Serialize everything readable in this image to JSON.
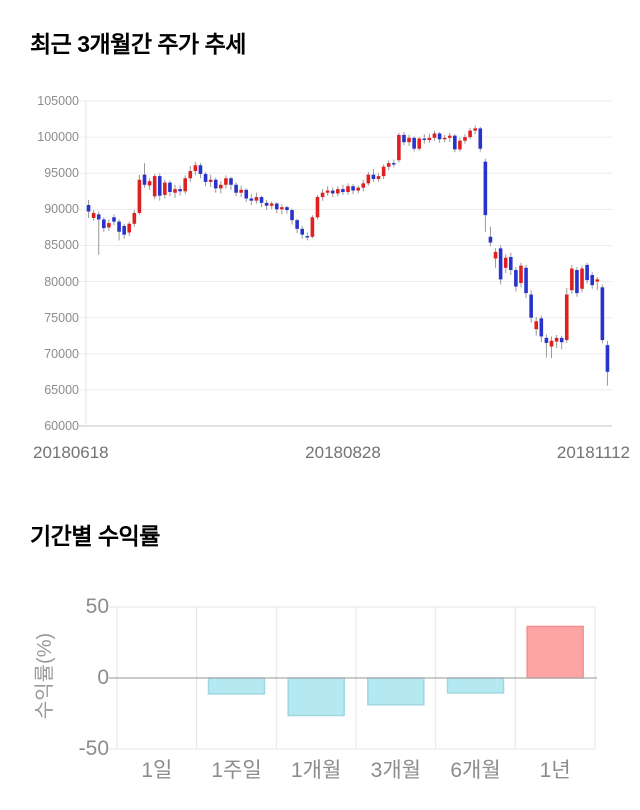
{
  "chart_data": [
    {
      "type": "candlestick",
      "title": "최근 3개월간 주가 추세",
      "xlabel": "",
      "ylabel": "",
      "ylim": [
        60000,
        105000
      ],
      "y_tick_labels": [
        105000,
        100000,
        95000,
        90000,
        85000,
        80000,
        75000,
        70000,
        65000,
        60000
      ],
      "x_tick_labels": [
        "20180618",
        "20180828",
        "20181112"
      ],
      "grid": true,
      "colors": {
        "up": "#e01f1f",
        "down": "#2733cc",
        "wick": "#999999",
        "grid": "#ededed",
        "axis_line": "#c6c6c6",
        "plot_edge": "#e5e5e5",
        "tick_text": "#8c8c8c",
        "date_text": "#737373"
      },
      "ohlc": [
        [
          90600,
          91300,
          88800,
          89700
        ],
        [
          88800,
          89900,
          88400,
          89500
        ],
        [
          89300,
          89700,
          83700,
          88600
        ],
        [
          88600,
          88900,
          86900,
          87400
        ],
        [
          87500,
          88600,
          87000,
          88100
        ],
        [
          88900,
          89300,
          87800,
          88300
        ],
        [
          88300,
          88600,
          85700,
          86900
        ],
        [
          87700,
          88000,
          85900,
          86500
        ],
        [
          86800,
          88300,
          86300,
          88000
        ],
        [
          88000,
          89900,
          87600,
          89500
        ],
        [
          89500,
          94800,
          89200,
          94100
        ],
        [
          94800,
          96400,
          93000,
          93400
        ],
        [
          93300,
          94300,
          92700,
          93900
        ],
        [
          91800,
          94900,
          91400,
          94600
        ],
        [
          94600,
          95000,
          91200,
          91900
        ],
        [
          92000,
          94100,
          91500,
          93700
        ],
        [
          93700,
          94000,
          91800,
          92400
        ],
        [
          92300,
          93400,
          91600,
          92800
        ],
        [
          92800,
          93300,
          91900,
          92500
        ],
        [
          92500,
          94700,
          92100,
          94300
        ],
        [
          94300,
          96000,
          93800,
          95300
        ],
        [
          95300,
          96600,
          94700,
          96100
        ],
        [
          96100,
          96400,
          94300,
          94900
        ],
        [
          94900,
          95200,
          93200,
          93800
        ],
        [
          93800,
          94800,
          93100,
          94100
        ],
        [
          94100,
          94400,
          92300,
          92900
        ],
        [
          92900,
          93900,
          92200,
          93400
        ],
        [
          93400,
          94700,
          92900,
          94300
        ],
        [
          94300,
          94500,
          92700,
          93400
        ],
        [
          93400,
          93700,
          91800,
          92300
        ],
        [
          92300,
          93300,
          91700,
          92700
        ],
        [
          92700,
          92900,
          91000,
          91500
        ],
        [
          91500,
          92100,
          90600,
          91200
        ],
        [
          91200,
          92300,
          90800,
          91700
        ],
        [
          91700,
          91900,
          90300,
          90900
        ],
        [
          90900,
          91300,
          89900,
          90500
        ],
        [
          90500,
          91100,
          90000,
          90800
        ],
        [
          90800,
          91000,
          89500,
          90000
        ],
        [
          90000,
          90700,
          89300,
          90300
        ],
        [
          90300,
          90500,
          89400,
          89900
        ],
        [
          89900,
          90100,
          87900,
          88500
        ],
        [
          88500,
          88700,
          86700,
          87300
        ],
        [
          87300,
          87700,
          85900,
          86500
        ],
        [
          86300,
          86800,
          85700,
          86200
        ],
        [
          86200,
          89200,
          86000,
          88900
        ],
        [
          88900,
          92000,
          88600,
          91700
        ],
        [
          91700,
          92800,
          91200,
          92300
        ],
        [
          92300,
          93200,
          91900,
          92600
        ],
        [
          92600,
          93000,
          91700,
          92200
        ],
        [
          92200,
          93200,
          91800,
          92800
        ],
        [
          92800,
          93400,
          92000,
          92400
        ],
        [
          92400,
          93600,
          92000,
          93200
        ],
        [
          93200,
          93500,
          92100,
          92600
        ],
        [
          92600,
          93300,
          92200,
          93000
        ],
        [
          93000,
          94100,
          92500,
          93600
        ],
        [
          93600,
          95200,
          93300,
          94800
        ],
        [
          94800,
          95600,
          93800,
          94200
        ],
        [
          94200,
          95000,
          93800,
          94600
        ],
        [
          94600,
          96200,
          94200,
          95900
        ],
        [
          95900,
          96800,
          95400,
          96400
        ],
        [
          96400,
          96900,
          95800,
          96300
        ],
        [
          96800,
          100600,
          96500,
          100300
        ],
        [
          100300,
          100700,
          98900,
          99300
        ],
        [
          99300,
          100300,
          98800,
          99900
        ],
        [
          99900,
          100100,
          98000,
          98400
        ],
        [
          98400,
          100000,
          98100,
          99800
        ],
        [
          99800,
          100400,
          99100,
          99600
        ],
        [
          99600,
          100500,
          99200,
          99900
        ],
        [
          99900,
          100900,
          99500,
          100500
        ],
        [
          100500,
          100700,
          99200,
          99700
        ],
        [
          99700,
          100300,
          99300,
          99900
        ],
        [
          99900,
          100600,
          99300,
          100200
        ],
        [
          100200,
          100400,
          97900,
          98300
        ],
        [
          98300,
          99900,
          98000,
          99500
        ],
        [
          99500,
          100400,
          99100,
          100000
        ],
        [
          100000,
          101300,
          99700,
          100900
        ],
        [
          100900,
          101600,
          100400,
          101200
        ],
        [
          101200,
          101400,
          98000,
          98400
        ],
        [
          96600,
          97000,
          86900,
          89200
        ],
        [
          86200,
          87600,
          84900,
          85400
        ],
        [
          83200,
          84600,
          81900,
          84100
        ],
        [
          84600,
          85000,
          79600,
          80300
        ],
        [
          81900,
          83800,
          81200,
          83300
        ],
        [
          83400,
          84000,
          80900,
          81600
        ],
        [
          81600,
          82000,
          78600,
          79300
        ],
        [
          79800,
          82600,
          79200,
          82200
        ],
        [
          81900,
          82300,
          77700,
          78400
        ],
        [
          78200,
          78800,
          74300,
          75000
        ],
        [
          73400,
          75100,
          72500,
          74500
        ],
        [
          74900,
          75300,
          71600,
          72400
        ],
        [
          72200,
          72700,
          69500,
          71500
        ],
        [
          71000,
          72400,
          69400,
          71800
        ],
        [
          71700,
          72600,
          70800,
          72200
        ],
        [
          72200,
          72500,
          70600,
          71600
        ],
        [
          71900,
          79100,
          71500,
          78200
        ],
        [
          78800,
          82300,
          78300,
          81800
        ],
        [
          81600,
          82000,
          77900,
          78400
        ],
        [
          79000,
          82200,
          78500,
          81800
        ],
        [
          82300,
          82600,
          79700,
          80200
        ],
        [
          80900,
          81300,
          79000,
          79500
        ],
        [
          80000,
          80600,
          78800,
          80300
        ],
        [
          79200,
          79600,
          71400,
          71900
        ],
        [
          71200,
          71800,
          65600,
          67500
        ]
      ]
    },
    {
      "type": "bar",
      "title": "기간별 수익률",
      "xlabel": "",
      "ylabel": "수익률(%)",
      "categories": [
        "1일",
        "1주일",
        "1개월",
        "3개월",
        "6개월",
        "1년"
      ],
      "values": [
        0,
        -11.2,
        -26.4,
        -18.8,
        -10.5,
        36.3
      ],
      "ylim": [
        -50,
        50
      ],
      "y_ticks": [
        50,
        0,
        -50
      ],
      "grid": true,
      "legend": false,
      "colors": {
        "negative_fill": "#b4e9f2",
        "negative_border": "#9ed7e2",
        "positive_fill": "#fda4a4",
        "positive_border": "#f49090",
        "grid": "#e5e5e5",
        "zero_line": "#aaaaaa",
        "tick_text": "#8c8c8c"
      }
    }
  ]
}
